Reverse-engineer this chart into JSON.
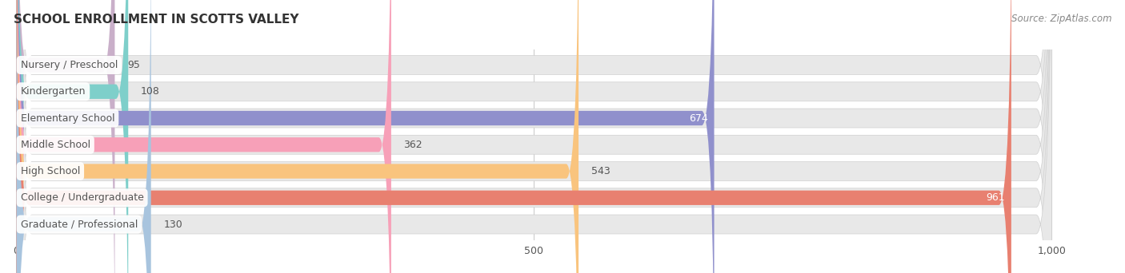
{
  "title": "SCHOOL ENROLLMENT IN SCOTTS VALLEY",
  "source": "Source: ZipAtlas.com",
  "categories": [
    "Nursery / Preschool",
    "Kindergarten",
    "Elementary School",
    "Middle School",
    "High School",
    "College / Undergraduate",
    "Graduate / Professional"
  ],
  "values": [
    95,
    108,
    674,
    362,
    543,
    961,
    130
  ],
  "bar_colors": [
    "#c9afc9",
    "#7ecfca",
    "#9090cc",
    "#f7a0b8",
    "#f9c47e",
    "#e88070",
    "#a8c4de"
  ],
  "bg_bar_color": "#e8e8e8",
  "bg_bar_edge_color": "#d0d0d0",
  "xlim_max": 1000,
  "xticks": [
    0,
    500,
    1000
  ],
  "value_label_inside": [
    false,
    false,
    true,
    false,
    false,
    true,
    false
  ],
  "title_fontsize": 11,
  "source_fontsize": 8.5,
  "bar_label_fontsize": 9,
  "value_fontsize": 9,
  "background_color": "#ffffff",
  "label_text_color": "#555555",
  "grid_color": "#cccccc"
}
